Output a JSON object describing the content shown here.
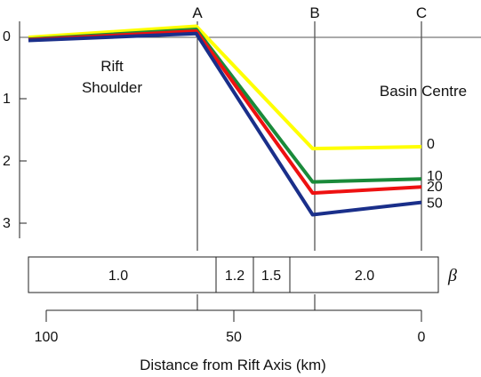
{
  "columns": {
    "a": "A",
    "b": "B",
    "c": "C"
  },
  "depth_ticks": [
    "0",
    "1",
    "2",
    "3"
  ],
  "regions": {
    "shoulder_line1": "Rift",
    "shoulder_line2": "Shoulder",
    "basin": "Basin Centre"
  },
  "curves": [
    {
      "label": "0",
      "color": "#ffff00",
      "points": [
        [
          100,
          0.0
        ],
        [
          60,
          -0.18
        ],
        [
          29,
          1.8
        ],
        [
          0,
          1.77
        ]
      ]
    },
    {
      "label": "10",
      "color": "#1a8a3a",
      "points": [
        [
          100,
          0.03
        ],
        [
          60,
          -0.13
        ],
        [
          29,
          2.34
        ],
        [
          0,
          2.29
        ]
      ]
    },
    {
      "label": "20",
      "color": "#ee1111",
      "points": [
        [
          100,
          0.04
        ],
        [
          60,
          -0.1
        ],
        [
          29,
          2.52
        ],
        [
          0,
          2.42
        ]
      ]
    },
    {
      "label": "50",
      "color": "#1a2f8a",
      "points": [
        [
          100,
          0.05
        ],
        [
          60,
          -0.06
        ],
        [
          29,
          2.87
        ],
        [
          0,
          2.67
        ]
      ]
    }
  ],
  "beta_bar": {
    "symbol": "β",
    "segments": [
      "1.0",
      "1.2",
      "1.5",
      "2.0"
    ]
  },
  "x_axis": {
    "ticks": [
      "100",
      "50",
      "0"
    ],
    "label": "Distance from Rift Axis (km)"
  }
}
